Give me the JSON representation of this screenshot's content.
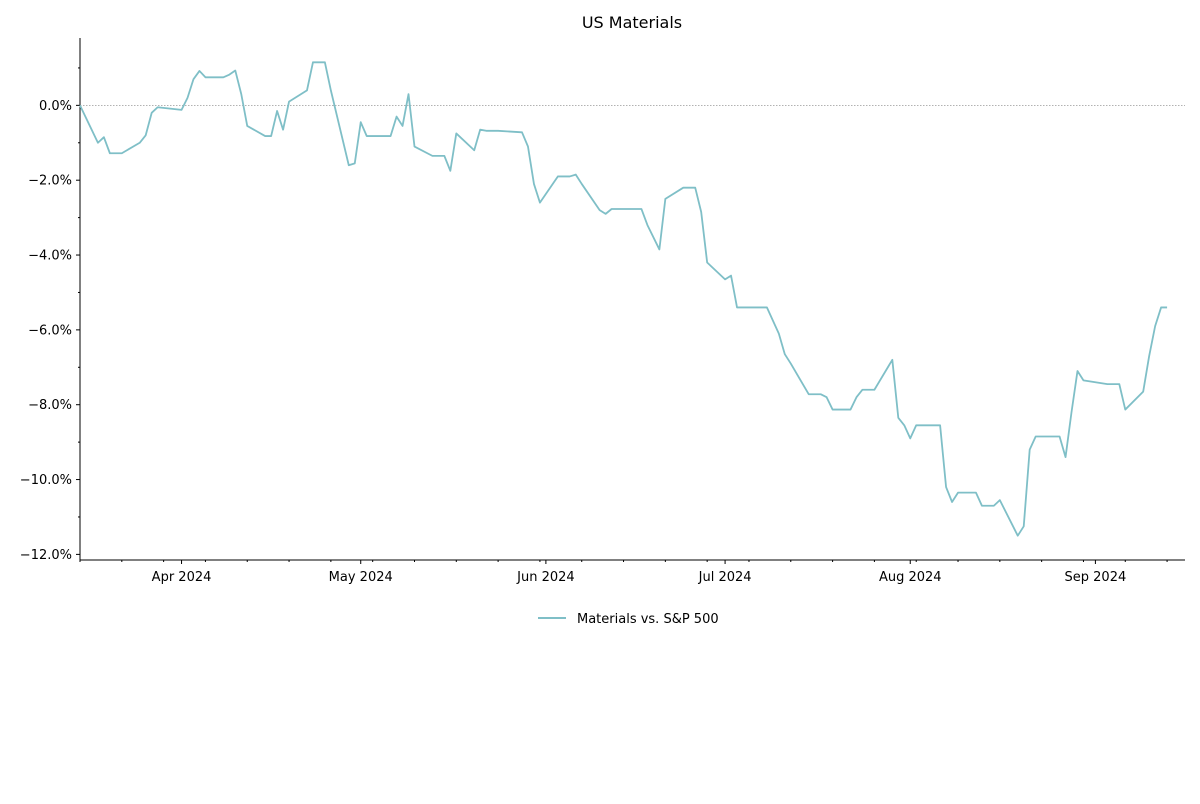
{
  "chart_data": {
    "type": "line",
    "title": "US Materials",
    "xlabel": "",
    "ylabel": "",
    "x_tick_labels": [
      {
        "date": "2024-04-01",
        "label": "Apr 2024"
      },
      {
        "date": "2024-05-01",
        "label": "May 2024"
      },
      {
        "date": "2024-06-01",
        "label": "Jun 2024"
      },
      {
        "date": "2024-07-01",
        "label": "Jul 2024"
      },
      {
        "date": "2024-08-01",
        "label": "Aug 2024"
      },
      {
        "date": "2024-09-01",
        "label": "Sep 2024"
      }
    ],
    "y_ticks": [
      -12,
      -10,
      -8,
      -6,
      -4,
      -2,
      0
    ],
    "y_tick_labels": [
      "−12.0%",
      "−10.0%",
      "−8.0%",
      "−6.0%",
      "−4.0%",
      "−2.0%",
      "0.0%"
    ],
    "xlim": [
      "2024-03-15",
      "2024-09-16"
    ],
    "ylim": [
      -12.15,
      1.8
    ],
    "grid": false,
    "reference_line": {
      "y": 0,
      "style": "dotted",
      "color": "#999999"
    },
    "legend": {
      "placement": "bottom-center"
    },
    "series": [
      {
        "name": "Materials vs. S&P 500",
        "color": "#7fbfc7",
        "points": [
          [
            "2024-03-15",
            0.0
          ],
          [
            "2024-03-18",
            -1.0
          ],
          [
            "2024-03-19",
            -0.85
          ],
          [
            "2024-03-20",
            -1.28
          ],
          [
            "2024-03-21",
            -1.28
          ],
          [
            "2024-03-22",
            -1.28
          ],
          [
            "2024-03-25",
            -1.0
          ],
          [
            "2024-03-26",
            -0.8
          ],
          [
            "2024-03-27",
            -0.2
          ],
          [
            "2024-03-28",
            -0.05
          ],
          [
            "2024-04-01",
            -0.12
          ],
          [
            "2024-04-02",
            0.2
          ],
          [
            "2024-04-03",
            0.7
          ],
          [
            "2024-04-04",
            0.92
          ],
          [
            "2024-04-05",
            0.75
          ],
          [
            "2024-04-08",
            0.75
          ],
          [
            "2024-04-09",
            0.82
          ],
          [
            "2024-04-10",
            0.93
          ],
          [
            "2024-04-11",
            0.3
          ],
          [
            "2024-04-12",
            -0.55
          ],
          [
            "2024-04-15",
            -0.82
          ],
          [
            "2024-04-16",
            -0.82
          ],
          [
            "2024-04-17",
            -0.15
          ],
          [
            "2024-04-18",
            -0.65
          ],
          [
            "2024-04-19",
            0.1
          ],
          [
            "2024-04-22",
            0.4
          ],
          [
            "2024-04-23",
            1.15
          ],
          [
            "2024-04-24",
            1.15
          ],
          [
            "2024-04-25",
            1.15
          ],
          [
            "2024-04-26",
            0.4
          ],
          [
            "2024-04-29",
            -1.6
          ],
          [
            "2024-04-30",
            -1.55
          ],
          [
            "2024-05-01",
            -0.45
          ],
          [
            "2024-05-02",
            -0.82
          ],
          [
            "2024-05-03",
            -0.82
          ],
          [
            "2024-05-06",
            -0.82
          ],
          [
            "2024-05-07",
            -0.3
          ],
          [
            "2024-05-08",
            -0.55
          ],
          [
            "2024-05-09",
            0.3
          ],
          [
            "2024-05-10",
            -1.1
          ],
          [
            "2024-05-13",
            -1.35
          ],
          [
            "2024-05-14",
            -1.35
          ],
          [
            "2024-05-15",
            -1.35
          ],
          [
            "2024-05-16",
            -1.75
          ],
          [
            "2024-05-17",
            -0.75
          ],
          [
            "2024-05-20",
            -1.2
          ],
          [
            "2024-05-21",
            -0.65
          ],
          [
            "2024-05-22",
            -0.68
          ],
          [
            "2024-05-23",
            -0.68
          ],
          [
            "2024-05-24",
            -0.68
          ],
          [
            "2024-05-28",
            -0.72
          ],
          [
            "2024-05-29",
            -1.1
          ],
          [
            "2024-05-30",
            -2.1
          ],
          [
            "2024-05-31",
            -2.6
          ],
          [
            "2024-06-03",
            -1.9
          ],
          [
            "2024-06-04",
            -1.9
          ],
          [
            "2024-06-05",
            -1.9
          ],
          [
            "2024-06-06",
            -1.85
          ],
          [
            "2024-06-07",
            -2.1
          ],
          [
            "2024-06-10",
            -2.8
          ],
          [
            "2024-06-11",
            -2.9
          ],
          [
            "2024-06-12",
            -2.77
          ],
          [
            "2024-06-13",
            -2.77
          ],
          [
            "2024-06-14",
            -2.77
          ],
          [
            "2024-06-17",
            -2.77
          ],
          [
            "2024-06-18",
            -3.2
          ],
          [
            "2024-06-20",
            -3.85
          ],
          [
            "2024-06-21",
            -2.5
          ],
          [
            "2024-06-24",
            -2.2
          ],
          [
            "2024-06-25",
            -2.2
          ],
          [
            "2024-06-26",
            -2.2
          ],
          [
            "2024-06-27",
            -2.85
          ],
          [
            "2024-06-28",
            -4.2
          ],
          [
            "2024-07-01",
            -4.65
          ],
          [
            "2024-07-02",
            -4.55
          ],
          [
            "2024-07-03",
            -5.4
          ],
          [
            "2024-07-05",
            -5.4
          ],
          [
            "2024-07-08",
            -5.4
          ],
          [
            "2024-07-09",
            -5.75
          ],
          [
            "2024-07-10",
            -6.1
          ],
          [
            "2024-07-11",
            -6.65
          ],
          [
            "2024-07-12",
            -6.9
          ],
          [
            "2024-07-15",
            -7.72
          ],
          [
            "2024-07-16",
            -7.72
          ],
          [
            "2024-07-17",
            -7.72
          ],
          [
            "2024-07-18",
            -7.8
          ],
          [
            "2024-07-19",
            -8.13
          ],
          [
            "2024-07-22",
            -8.13
          ],
          [
            "2024-07-23",
            -7.8
          ],
          [
            "2024-07-24",
            -7.6
          ],
          [
            "2024-07-25",
            -7.6
          ],
          [
            "2024-07-26",
            -7.6
          ],
          [
            "2024-07-29",
            -6.8
          ],
          [
            "2024-07-30",
            -8.35
          ],
          [
            "2024-07-31",
            -8.55
          ],
          [
            "2024-08-01",
            -8.9
          ],
          [
            "2024-08-02",
            -8.55
          ],
          [
            "2024-08-05",
            -8.55
          ],
          [
            "2024-08-06",
            -8.55
          ],
          [
            "2024-08-07",
            -10.2
          ],
          [
            "2024-08-08",
            -10.6
          ],
          [
            "2024-08-09",
            -10.35
          ],
          [
            "2024-08-12",
            -10.35
          ],
          [
            "2024-08-13",
            -10.7
          ],
          [
            "2024-08-14",
            -10.7
          ],
          [
            "2024-08-15",
            -10.7
          ],
          [
            "2024-08-16",
            -10.55
          ],
          [
            "2024-08-19",
            -11.5
          ],
          [
            "2024-08-20",
            -11.25
          ],
          [
            "2024-08-21",
            -9.2
          ],
          [
            "2024-08-22",
            -8.85
          ],
          [
            "2024-08-23",
            -8.85
          ],
          [
            "2024-08-26",
            -8.85
          ],
          [
            "2024-08-27",
            -9.4
          ],
          [
            "2024-08-28",
            -8.2
          ],
          [
            "2024-08-29",
            -7.1
          ],
          [
            "2024-08-30",
            -7.35
          ],
          [
            "2024-09-03",
            -7.45
          ],
          [
            "2024-09-04",
            -7.45
          ],
          [
            "2024-09-05",
            -7.45
          ],
          [
            "2024-09-06",
            -8.13
          ],
          [
            "2024-09-09",
            -7.65
          ],
          [
            "2024-09-10",
            -6.7
          ],
          [
            "2024-09-11",
            -5.9
          ],
          [
            "2024-09-12",
            -5.4
          ],
          [
            "2024-09-13",
            -5.4
          ]
        ]
      }
    ]
  }
}
